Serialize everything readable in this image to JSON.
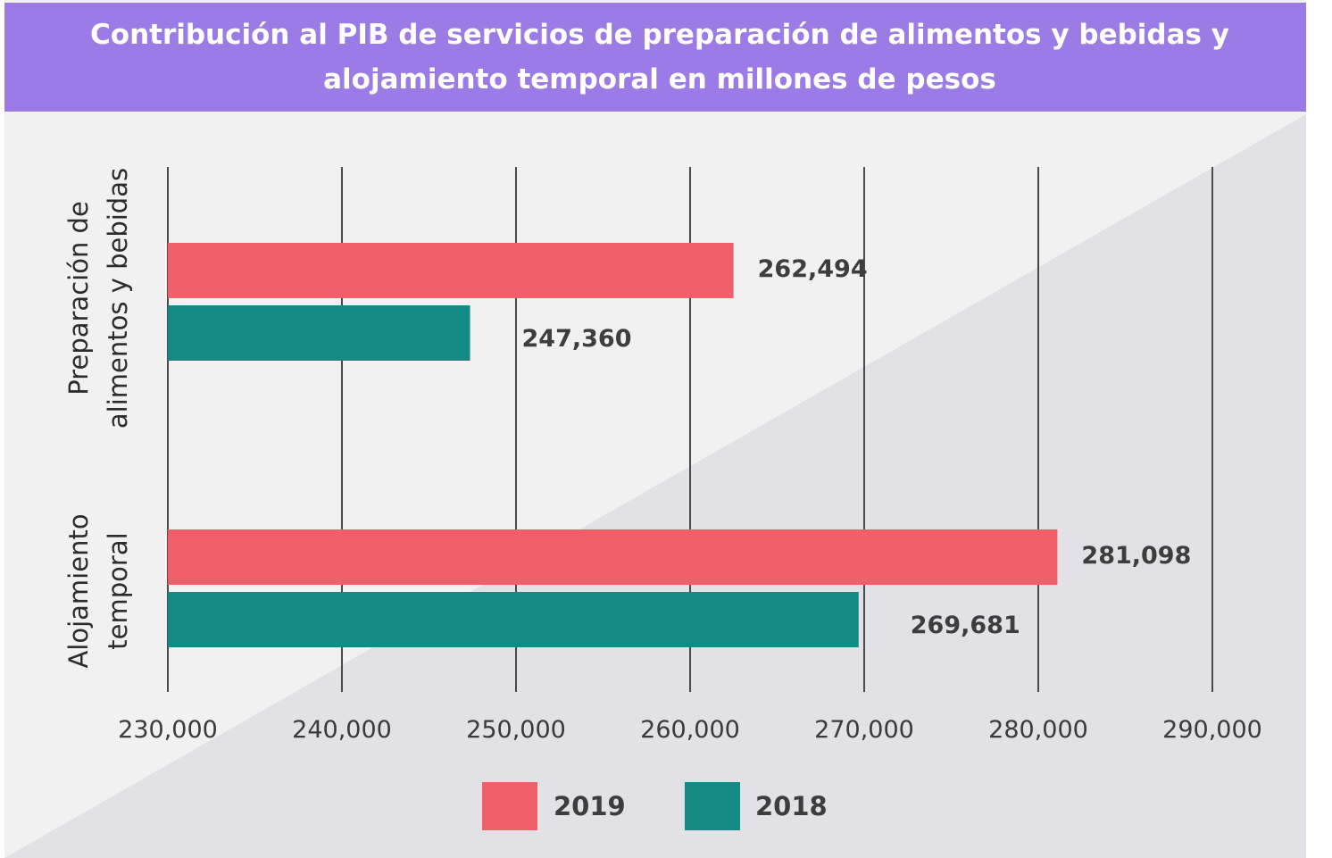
{
  "chart_data": {
    "type": "bar",
    "orientation": "horizontal",
    "title": "Contribución al PIB de servicios de preparación de alimentos y bebidas y alojamiento temporal en millones de pesos",
    "title_lines": [
      "Contribución al PIB de servicios de preparación de alimentos y bebidas y",
      "alojamiento temporal en millones de pesos"
    ],
    "categories": [
      {
        "lines": [
          "Preparación de",
          "alimentos y bebidas"
        ]
      },
      {
        "lines": [
          "Alojamiento",
          "temporal"
        ]
      }
    ],
    "series": [
      {
        "name": "2019",
        "color": "#f0606a",
        "values": [
          262494,
          281098
        ],
        "labels": [
          "262,494",
          "281,098"
        ]
      },
      {
        "name": "2018",
        "color": "#138a84",
        "values": [
          247360,
          269681
        ],
        "labels": [
          "247,360",
          "269,681"
        ]
      }
    ],
    "xlim": [
      230000,
      290000
    ],
    "xticks": [
      230000,
      240000,
      250000,
      260000,
      270000,
      280000,
      290000
    ],
    "xtick_labels": [
      "230,000",
      "240,000",
      "250,000",
      "260,000",
      "270,000",
      "280,000",
      "290,000"
    ],
    "grid": "vertical",
    "legend_position": "bottom",
    "colors": {
      "title_band": "#9b7be6",
      "background": "#f1f1f1",
      "background_shade": "#e2e2e6",
      "gridline": "#4a4a4a"
    }
  }
}
